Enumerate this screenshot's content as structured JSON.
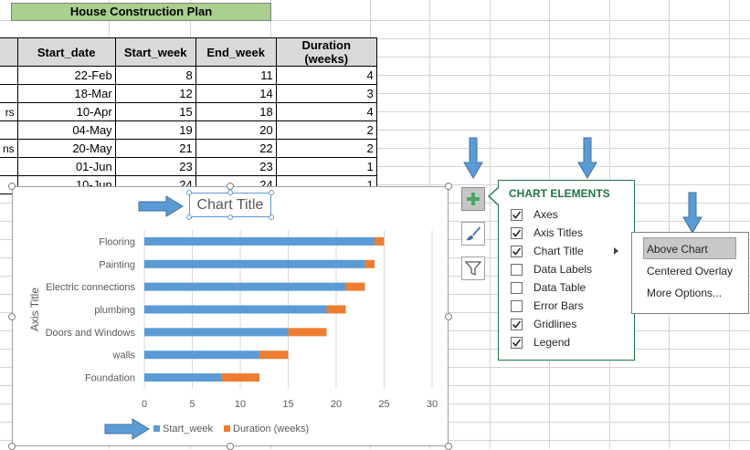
{
  "sheet": {
    "title": "House Construction Plan",
    "headers": [
      "Start_date",
      "Start_week",
      "End_week",
      "Duration (weeks)"
    ],
    "rows": [
      {
        "label_fragment": "",
        "start_date": "22-Feb",
        "start_week": "8",
        "end_week": "11",
        "duration": "4"
      },
      {
        "label_fragment": "",
        "start_date": "18-Mar",
        "start_week": "12",
        "end_week": "14",
        "duration": "3"
      },
      {
        "label_fragment": "rs",
        "start_date": "10-Apr",
        "start_week": "15",
        "end_week": "18",
        "duration": "4"
      },
      {
        "label_fragment": "",
        "start_date": "04-May",
        "start_week": "19",
        "end_week": "20",
        "duration": "2"
      },
      {
        "label_fragment": "ns",
        "start_date": "20-May",
        "start_week": "21",
        "end_week": "22",
        "duration": "2"
      },
      {
        "label_fragment": "",
        "start_date": "01-Jun",
        "start_week": "23",
        "end_week": "23",
        "duration": "1"
      },
      {
        "label_fragment": "",
        "start_date": "10-Jun",
        "start_week": "24",
        "end_week": "24",
        "duration": "1"
      }
    ]
  },
  "chart": {
    "title_placeholder": "Chart Title",
    "axis_title_placeholder": "Axis Title",
    "colors": {
      "start_week": "#5b9bd5",
      "duration": "#ed7d31"
    }
  },
  "chart_data": {
    "type": "bar",
    "orientation": "horizontal",
    "stacked": true,
    "title": "Chart Title",
    "ylabel": "Axis Title",
    "categories": [
      "Flooring",
      "Painting",
      "Electric connections",
      "plumbing",
      "Doors and Windows",
      "walls",
      "Foundation"
    ],
    "series": [
      {
        "name": "Start_week",
        "values": [
          24,
          23,
          21,
          19,
          15,
          12,
          8
        ]
      },
      {
        "name": "Duration (weeks)",
        "values": [
          1,
          1,
          2,
          2,
          4,
          3,
          4
        ]
      }
    ],
    "x_ticks": [
      "0",
      "5",
      "10",
      "15",
      "20",
      "25",
      "30"
    ],
    "xlim": [
      0,
      30
    ],
    "legend": "bottom"
  },
  "side_buttons": [
    "chart-elements",
    "chart-styles",
    "chart-filters"
  ],
  "chart_elements_panel": {
    "heading": "CHART ELEMENTS",
    "options": [
      {
        "label": "Axes",
        "checked": true
      },
      {
        "label": "Axis Titles",
        "checked": true
      },
      {
        "label": "Chart Title",
        "checked": true
      },
      {
        "label": "Data Labels",
        "checked": false
      },
      {
        "label": "Data Table",
        "checked": false
      },
      {
        "label": "Error Bars",
        "checked": false
      },
      {
        "label": "Gridlines",
        "checked": true
      },
      {
        "label": "Legend",
        "checked": true
      }
    ]
  },
  "chart_title_submenu": {
    "items": [
      "Above Chart",
      "Centered Overlay",
      "More Options..."
    ],
    "highlighted": "Above Chart"
  },
  "annotation_color": "#5b9bd5"
}
